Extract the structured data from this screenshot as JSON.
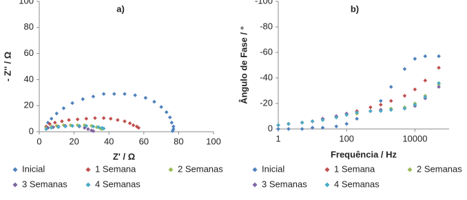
{
  "chart_data": [
    {
      "type": "scatter",
      "title": "a)",
      "x_label": "Z' / Ω",
      "y_label": "- Z'' / Ω",
      "xlim": [
        0,
        100
      ],
      "ylim": [
        0,
        100
      ],
      "xticks": [
        0,
        20,
        40,
        60,
        80,
        100
      ],
      "yticks": [
        0,
        20,
        40,
        60,
        80,
        100
      ],
      "grid": false,
      "series": [
        {
          "name": "Inicial",
          "color": "#4f81bd",
          "x": [
            4,
            5,
            7,
            10,
            14,
            19,
            25,
            31,
            37,
            43,
            49,
            55,
            61,
            66,
            70,
            73,
            75,
            76,
            77,
            77,
            76.5
          ],
          "values": [
            4,
            7,
            10,
            14,
            18,
            22,
            25,
            27,
            29,
            29,
            29,
            28,
            26,
            23,
            19,
            15,
            11,
            7,
            4,
            2,
            0.5
          ]
        },
        {
          "name": "1 Semana",
          "color": "#c0504d",
          "x": [
            4,
            6,
            9,
            13,
            17,
            22,
            27,
            32,
            37,
            41,
            45,
            49,
            52,
            54,
            56,
            57
          ],
          "values": [
            4,
            6,
            7,
            8,
            9,
            9.5,
            10,
            10.5,
            10.5,
            10,
            9,
            8,
            6.5,
            5,
            4,
            3
          ]
        },
        {
          "name": "2 Semanas",
          "color": "#9bbb59",
          "x": [
            4,
            7,
            10,
            14,
            18,
            22,
            26,
            30,
            33,
            35,
            36
          ],
          "values": [
            3,
            4,
            4.5,
            5,
            5,
            5,
            5,
            4.5,
            3.5,
            2.5,
            2
          ]
        },
        {
          "name": "3 Semanas",
          "color": "#8064a2",
          "x": [
            5,
            8,
            11,
            15,
            19,
            23,
            26,
            28,
            30,
            31
          ],
          "values": [
            3,
            3.5,
            4,
            4.5,
            4.5,
            4,
            3,
            2,
            1,
            0.5
          ]
        },
        {
          "name": "4 Semanas",
          "color": "#4bacc6",
          "x": [
            4,
            7,
            11,
            15,
            19,
            23,
            27,
            31,
            34,
            36,
            37
          ],
          "values": [
            2,
            3,
            3.5,
            4,
            4.5,
            4.5,
            4.5,
            4,
            3.5,
            3,
            2.5
          ]
        }
      ]
    },
    {
      "type": "scatter",
      "title": "b)",
      "x_label": "Frequência / Hz",
      "y_label": "Ângulo de Fase  / °",
      "xscale": "log",
      "xlim": [
        1,
        100000
      ],
      "ylim": [
        0,
        -100
      ],
      "xticks": [
        1,
        100,
        10000
      ],
      "yticks": [
        0,
        -20,
        -40,
        -60,
        -80,
        -100
      ],
      "grid": false,
      "x": [
        1,
        2,
        5,
        10,
        20,
        50,
        100,
        200,
        500,
        1000,
        2000,
        5000,
        10000,
        20000,
        50000
      ],
      "series": [
        {
          "name": "Inicial",
          "color": "#4f81bd",
          "values": [
            0,
            0,
            0,
            -1,
            -1,
            -2,
            -4,
            -8,
            -14,
            -22,
            -33,
            -47,
            -55,
            -57,
            -57
          ]
        },
        {
          "name": "1 Semana",
          "color": "#c0504d",
          "values": [
            -3,
            -4,
            -5,
            -6,
            -8,
            -10,
            -12,
            -14,
            -17,
            -19,
            -22,
            -26,
            -31,
            -38,
            -48
          ]
        },
        {
          "name": "2 Semanas",
          "color": "#9bbb59",
          "values": [
            -3,
            -4,
            -5,
            -6,
            -7,
            -9,
            -11,
            -12,
            -14,
            -15,
            -16,
            -17,
            -20,
            -26,
            -35
          ]
        },
        {
          "name": "3 Semanas",
          "color": "#8064a2",
          "values": [
            -3,
            -4,
            -5,
            -6,
            -8,
            -10,
            -12,
            -13,
            -14,
            -15,
            -15,
            -16,
            -18,
            -24,
            -33
          ]
        },
        {
          "name": "4 Semanas",
          "color": "#4bacc6",
          "values": [
            -3,
            -4,
            -5,
            -6,
            -7,
            -9,
            -11,
            -13,
            -14,
            -14,
            -15,
            -16,
            -19,
            -25,
            -36
          ]
        }
      ]
    }
  ]
}
